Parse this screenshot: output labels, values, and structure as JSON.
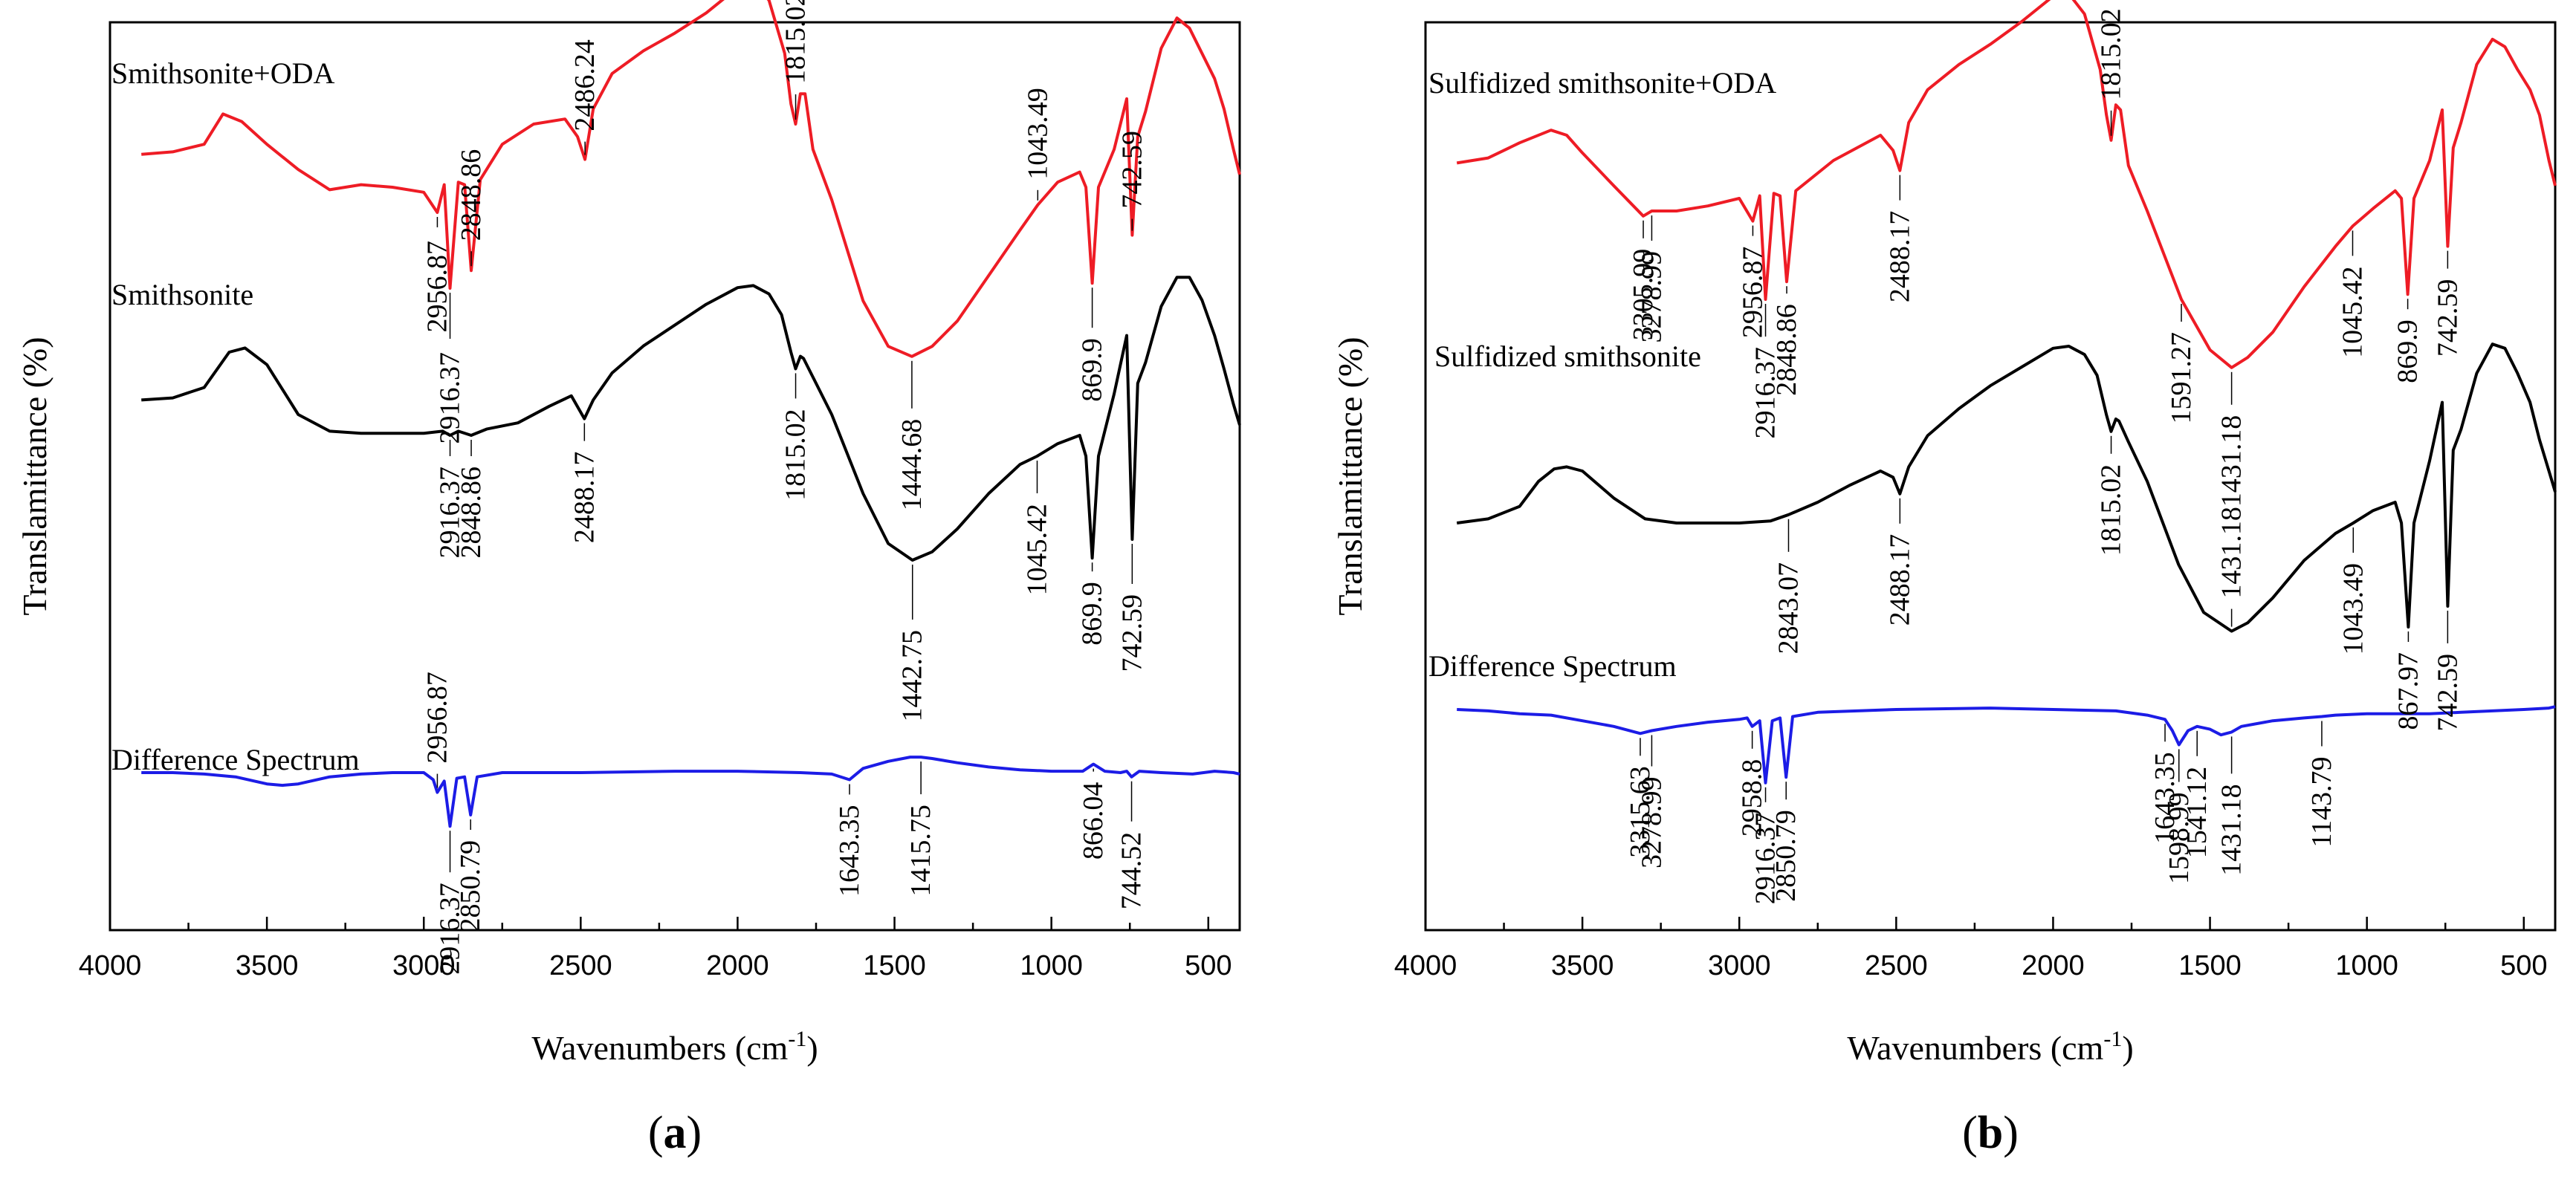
{
  "chart_data": [
    {
      "panel_label": "(a)",
      "panel_letter": "a",
      "type": "line",
      "xlabel": "Wavenumbers (cm-1)",
      "xlabel_main": "Wavenumbers (cm",
      "xlabel_sup": "-1",
      "xlabel_end": ")",
      "ylabel": "Translamittance (%)",
      "xlim": [
        4000,
        400
      ],
      "xticks": [
        4000,
        3500,
        3000,
        2500,
        2000,
        1500,
        1000,
        500
      ],
      "xticklabels": [
        "4000",
        "3500",
        "3000",
        "2500",
        "2000",
        "1500",
        "1000",
        "500"
      ],
      "series": [
        {
          "name": "Smithsonite+ODA",
          "color": "#ee1c25",
          "x": [
            3900,
            3800,
            3700,
            3640,
            3580,
            3500,
            3400,
            3300,
            3200,
            3100,
            3000,
            2956.87,
            2935,
            2916.37,
            2890,
            2870,
            2848.86,
            2820,
            2750,
            2650,
            2550,
            2510,
            2486.24,
            2460,
            2400,
            2300,
            2200,
            2100,
            2000,
            1950,
            1900,
            1850,
            1830,
            1815.02,
            1800,
            1785,
            1760,
            1700,
            1600,
            1520,
            1444.68,
            1380,
            1300,
            1200,
            1100,
            1043.49,
            980,
            910,
            890,
            869.9,
            850,
            800,
            760,
            742.59,
            725,
            700,
            650,
            600,
            560,
            520,
            480,
            450,
            420,
            400
          ],
          "y": [
            8,
            9,
            12,
            24,
            21,
            12,
            2,
            -6,
            -4,
            -5,
            -7,
            -15,
            -4,
            -45,
            -3,
            -4,
            -38,
            -2,
            12,
            20,
            22,
            15,
            6,
            26,
            40,
            49,
            56,
            64,
            74,
            76,
            69,
            48,
            28,
            20,
            32,
            32,
            10,
            -10,
            -50,
            -68,
            -72,
            -68,
            -58,
            -40,
            -22,
            -12,
            -3,
            1,
            -5,
            -43,
            -5,
            10,
            30,
            -24,
            15,
            25,
            50,
            62,
            58,
            48,
            38,
            26,
            10,
            0
          ]
        },
        {
          "name": "Smithsonite",
          "color": "#000000",
          "x": [
            3900,
            3800,
            3700,
            3620,
            3570,
            3500,
            3400,
            3300,
            3200,
            3100,
            3000,
            2940,
            2916.37,
            2890,
            2848.86,
            2800,
            2700,
            2600,
            2530,
            2488.17,
            2460,
            2400,
            2300,
            2200,
            2100,
            2000,
            1950,
            1900,
            1860,
            1830,
            1815.02,
            1800,
            1790,
            1760,
            1700,
            1600,
            1520,
            1442.75,
            1380,
            1300,
            1200,
            1100,
            1045.42,
            980,
            910,
            890,
            869.9,
            850,
            800,
            760,
            742.59,
            725,
            700,
            650,
            600,
            560,
            520,
            480,
            450,
            420,
            400
          ],
          "y": [
            -3,
            -2,
            3,
            20,
            22,
            14,
            -10,
            -18,
            -19,
            -19,
            -19,
            -18,
            -20,
            -18,
            -20,
            -17,
            -14,
            -6,
            -1,
            -12,
            -3,
            10,
            23,
            33,
            43,
            51,
            52,
            48,
            38,
            20,
            12,
            18,
            17,
            8,
            -10,
            -48,
            -72,
            -80,
            -76,
            -65,
            -48,
            -34,
            -30,
            -24,
            -20,
            -30,
            -79,
            -30,
            0,
            28,
            -70,
            5,
            15,
            42,
            56,
            56,
            45,
            28,
            12,
            -5,
            -15
          ]
        },
        {
          "name": "Difference Spectrum",
          "color": "#1c1ce6",
          "x": [
            3900,
            3800,
            3700,
            3600,
            3500,
            3450,
            3400,
            3300,
            3200,
            3100,
            3000,
            2970,
            2956.87,
            2935,
            2916.37,
            2895,
            2870,
            2850.79,
            2830,
            2750,
            2500,
            2200,
            2000,
            1800,
            1700,
            1643.35,
            1600,
            1520,
            1450,
            1415.75,
            1380,
            1300,
            1200,
            1100,
            1000,
            900,
            866.04,
            830,
            780,
            760,
            744.52,
            720,
            650,
            550,
            480,
            420,
            400
          ],
          "y": [
            0,
            0,
            -1,
            -3,
            -8,
            -9,
            -8,
            -3,
            -1,
            0,
            0,
            -5,
            -14,
            -6,
            -38,
            -4,
            -3,
            -30,
            -3,
            0,
            0,
            1,
            1,
            0,
            -1,
            -5,
            3,
            8,
            11,
            11,
            10,
            7,
            4,
            2,
            1,
            1,
            6,
            1,
            0,
            1,
            -3,
            1,
            0,
            -1,
            1,
            0,
            -1
          ]
        }
      ],
      "annotations": [
        "2956.87",
        "2916.37",
        "2848.86",
        "2486.24",
        "1815.02",
        "1444.68",
        "1043.49",
        "869.9",
        "742.59",
        "2916.37",
        "2848.86",
        "2488.17",
        "1815.02",
        "1442.75",
        "1045.42",
        "869.9",
        "742.59",
        "2956.87",
        "2916.37",
        "2850.79",
        "1643.35",
        "1415.75",
        "866.04",
        "744.52"
      ]
    },
    {
      "panel_label": "(b)",
      "panel_letter": "b",
      "type": "line",
      "xlabel": "Wavenumbers (cm-1)",
      "xlabel_main": "Wavenumbers (cm",
      "xlabel_sup": "-1",
      "xlabel_end": ")",
      "ylabel": "Translamittance (%)",
      "xlim": [
        4000,
        400
      ],
      "xticks": [
        4000,
        3500,
        3000,
        2500,
        2000,
        1500,
        1000,
        500
      ],
      "xticklabels": [
        "4000",
        "3500",
        "3000",
        "2500",
        "2000",
        "1500",
        "1000",
        "500"
      ],
      "series": [
        {
          "name": "Sulfidized smithsonite+ODA",
          "color": "#ee1c25",
          "x": [
            3900,
            3800,
            3700,
            3600,
            3550,
            3500,
            3400,
            3305.99,
            3278.99,
            3200,
            3100,
            3000,
            2956.87,
            2935,
            2916.37,
            2890,
            2870,
            2848.86,
            2820,
            2700,
            2550,
            2510,
            2488.17,
            2460,
            2400,
            2300,
            2200,
            2100,
            2000,
            1950,
            1900,
            1850,
            1830,
            1815.02,
            1800,
            1785,
            1760,
            1700,
            1591.27,
            1500,
            1431.18,
            1380,
            1300,
            1200,
            1100,
            1045.42,
            980,
            910,
            890,
            869.9,
            850,
            800,
            760,
            742.59,
            725,
            700,
            650,
            600,
            560,
            520,
            480,
            450,
            420,
            400
          ],
          "y": [
            9,
            11,
            17,
            22,
            20,
            13,
            0,
            -12,
            -10,
            -10,
            -8,
            -5,
            -14,
            -4,
            -45,
            -3,
            -4,
            -38,
            -2,
            10,
            20,
            14,
            6,
            25,
            38,
            48,
            56,
            65,
            75,
            76,
            68,
            46,
            28,
            18,
            32,
            30,
            8,
            -10,
            -45,
            -65,
            -72,
            -68,
            -58,
            -40,
            -24,
            -16,
            -9,
            -2,
            -5,
            -43,
            -5,
            10,
            30,
            -24,
            15,
            25,
            48,
            58,
            55,
            46,
            38,
            28,
            10,
            0
          ]
        },
        {
          "name": "Sulfidized smithsonite",
          "color": "#000000",
          "x": [
            3900,
            3800,
            3700,
            3640,
            3590,
            3550,
            3500,
            3400,
            3300,
            3200,
            3100,
            3000,
            2900,
            2843.07,
            2750,
            2650,
            2550,
            2510,
            2488.17,
            2460,
            2400,
            2300,
            2200,
            2100,
            2000,
            1950,
            1900,
            1860,
            1830,
            1815.02,
            1800,
            1790,
            1760,
            1700,
            1600,
            1520,
            1431.18,
            1380,
            1300,
            1200,
            1100,
            1043.49,
            980,
            910,
            890,
            867.97,
            850,
            800,
            760,
            742.59,
            725,
            700,
            650,
            600,
            560,
            520,
            480,
            450,
            420,
            400
          ],
          "y": [
            -30,
            -28,
            -22,
            -10,
            -4,
            -3,
            -5,
            -18,
            -28,
            -30,
            -30,
            -30,
            -29,
            -26,
            -20,
            -12,
            -5,
            -8,
            -16,
            -3,
            12,
            25,
            36,
            45,
            54,
            55,
            51,
            41,
            22,
            14,
            20,
            19,
            9,
            -10,
            -50,
            -73,
            -82,
            -78,
            -66,
            -48,
            -35,
            -30,
            -24,
            -20,
            -30,
            -80,
            -30,
            0,
            28,
            -70,
            5,
            15,
            42,
            56,
            54,
            42,
            28,
            10,
            -5,
            -15
          ]
        },
        {
          "name": "Difference Spectrum",
          "color": "#1c1ce6",
          "x": [
            3900,
            3800,
            3700,
            3600,
            3500,
            3400,
            3315.63,
            3278.99,
            3200,
            3100,
            3000,
            2975,
            2958.8,
            2935,
            2916.37,
            2895,
            2870,
            2850.79,
            2830,
            2750,
            2500,
            2200,
            2000,
            1800,
            1700,
            1643.35,
            1620,
            1598.99,
            1570,
            1541.12,
            1500,
            1465,
            1431.18,
            1400,
            1300,
            1200,
            1143.79,
            1100,
            1000,
            900,
            800,
            700,
            600,
            500,
            420,
            400
          ],
          "y": [
            0,
            -1,
            -3,
            -4,
            -8,
            -12,
            -17,
            -15,
            -12,
            -9,
            -7,
            -6,
            -12,
            -8,
            -52,
            -8,
            -6,
            -48,
            -5,
            -2,
            0,
            1,
            0,
            -1,
            -4,
            -7,
            -15,
            -25,
            -15,
            -12,
            -14,
            -18,
            -16,
            -12,
            -8,
            -6,
            -5,
            -4,
            -3,
            -3,
            -3,
            -2,
            -1,
            0,
            1,
            2
          ]
        }
      ],
      "annotations": [
        "3305.99",
        "3278.99",
        "2956.87",
        "2916.37",
        "2848.86",
        "2488.17",
        "1815.02",
        "1591.27",
        "1431.18",
        "1045.42",
        "869.9",
        "742.59",
        "2843.07",
        "2488.17",
        "1815.02",
        "1431.18",
        "1043.49",
        "867.97",
        "742.59",
        "3315.63",
        "3278.99",
        "2958.8",
        "2916.37",
        "2850.79",
        "1643.35",
        "1598.99",
        "1541.12",
        "1431.18",
        "1143.79"
      ]
    }
  ]
}
